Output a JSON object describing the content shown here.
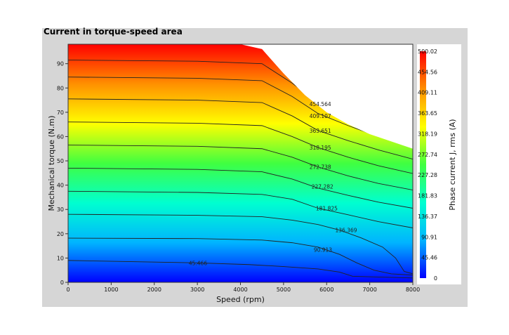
{
  "panel_title": "Current in torque-speed area",
  "chart_data": {
    "type": "heatmap",
    "title": "Current in torque-speed area",
    "xlabel": "Speed (rpm)",
    "ylabel": "Mechanical torque (N.m)",
    "colorbar_label": "Phase current J, rms (A)",
    "xlim": [
      0,
      8000
    ],
    "ylim": [
      0,
      98
    ],
    "x_ticks": [
      0,
      1000,
      2000,
      3000,
      4000,
      5000,
      6000,
      7000,
      8000
    ],
    "y_ticks": [
      0,
      10,
      20,
      30,
      40,
      50,
      60,
      70,
      80,
      90
    ],
    "colorbar_ticks": [
      "500.02",
      "454.56",
      "409.11",
      "363.65",
      "318.19",
      "272.74",
      "227.28",
      "181.83",
      "136.37",
      "90.91",
      "45.46",
      "0"
    ],
    "colorbar_range": [
      0,
      500.02
    ],
    "colormap": [
      "#0000ff",
      "#00b4ff",
      "#00ffd0",
      "#40ff40",
      "#ffff00",
      "#ff9000",
      "#ff0000"
    ],
    "envelope": [
      [
        0,
        98
      ],
      [
        4000,
        98
      ],
      [
        4500,
        96
      ],
      [
        5000,
        86
      ],
      [
        5500,
        77
      ],
      [
        6000,
        70
      ],
      [
        6500,
        65
      ],
      [
        7000,
        61
      ],
      [
        7500,
        58
      ],
      [
        8000,
        55
      ]
    ],
    "contours": [
      {
        "level": "45.466",
        "show_label": true,
        "label_at": [
          2800,
          8
        ],
        "points": [
          [
            0,
            9
          ],
          [
            3000,
            8
          ],
          [
            4200,
            7.3
          ],
          [
            5000,
            6.5
          ],
          [
            5800,
            5.5
          ],
          [
            6300,
            4.2
          ],
          [
            6600,
            2.5
          ],
          [
            8000,
            1.8
          ]
        ]
      },
      {
        "level": "90.913",
        "show_label": true,
        "label_at": [
          5700,
          13.5
        ],
        "points": [
          [
            0,
            18.2
          ],
          [
            3000,
            18
          ],
          [
            4500,
            17.4
          ],
          [
            5200,
            16.3
          ],
          [
            5800,
            14.5
          ],
          [
            6300,
            11.5
          ],
          [
            6700,
            8
          ],
          [
            7100,
            5
          ],
          [
            7500,
            3.5
          ],
          [
            8000,
            3
          ]
        ]
      },
      {
        "level": "136.369",
        "show_label": true,
        "label_at": [
          6200,
          21.5
        ],
        "points": [
          [
            0,
            28
          ],
          [
            3000,
            27.6
          ],
          [
            4500,
            27
          ],
          [
            5200,
            25.6
          ],
          [
            5800,
            23.8
          ],
          [
            6300,
            21.5
          ],
          [
            6800,
            18.3
          ],
          [
            7300,
            14.5
          ],
          [
            7600,
            10
          ],
          [
            7800,
            4.5
          ],
          [
            8000,
            3.5
          ]
        ]
      },
      {
        "level": "181.825",
        "show_label": true,
        "label_at": [
          5750,
          30.5
        ],
        "points": [
          [
            0,
            37.5
          ],
          [
            3000,
            37
          ],
          [
            4500,
            36.2
          ],
          [
            5200,
            34.2
          ],
          [
            5800,
            30.5
          ],
          [
            6500,
            27.8
          ],
          [
            7200,
            25
          ],
          [
            8000,
            22.4
          ]
        ]
      },
      {
        "level": "227.282",
        "show_label": true,
        "label_at": [
          5650,
          39.5
        ],
        "points": [
          [
            0,
            47
          ],
          [
            3000,
            46.5
          ],
          [
            4500,
            45.5
          ],
          [
            5200,
            42.5
          ],
          [
            5800,
            38.8
          ],
          [
            6500,
            35.8
          ],
          [
            7200,
            33
          ],
          [
            8000,
            30.5
          ]
        ]
      },
      {
        "level": "272.738",
        "show_label": true,
        "label_at": [
          5600,
          47.5
        ],
        "points": [
          [
            0,
            56.5
          ],
          [
            3000,
            56
          ],
          [
            4500,
            55
          ],
          [
            5200,
            51.5
          ],
          [
            5800,
            47.5
          ],
          [
            6500,
            43.8
          ],
          [
            7200,
            40.7
          ],
          [
            8000,
            38
          ]
        ]
      },
      {
        "level": "318.195",
        "show_label": true,
        "label_at": [
          5600,
          55.5
        ],
        "points": [
          [
            0,
            66
          ],
          [
            3000,
            65.5
          ],
          [
            4500,
            64.5
          ],
          [
            5200,
            60
          ],
          [
            5800,
            55.5
          ],
          [
            6500,
            51.5
          ],
          [
            7200,
            48
          ],
          [
            8000,
            44.8
          ]
        ]
      },
      {
        "level": "363.651",
        "show_label": true,
        "label_at": [
          5600,
          62.5
        ],
        "points": [
          [
            0,
            75.5
          ],
          [
            3000,
            75
          ],
          [
            4500,
            74
          ],
          [
            5200,
            68.5
          ],
          [
            5800,
            62.5
          ],
          [
            6500,
            58.3
          ],
          [
            7200,
            54.5
          ],
          [
            8000,
            50.7
          ]
        ]
      },
      {
        "level": "409.107",
        "show_label": true,
        "label_at": [
          5600,
          68.5
        ],
        "points": [
          [
            0,
            84.5
          ],
          [
            3000,
            84
          ],
          [
            4500,
            83
          ],
          [
            5200,
            76.5
          ],
          [
            5800,
            69.5
          ],
          [
            6500,
            64.5
          ],
          [
            7200,
            60
          ],
          [
            8000,
            55.5
          ]
        ]
      },
      {
        "level": "454.564",
        "show_label": true,
        "label_at": [
          5600,
          73.5
        ],
        "points": [
          [
            0,
            91.5
          ],
          [
            3000,
            91
          ],
          [
            4500,
            90
          ],
          [
            5200,
            82
          ],
          [
            5800,
            74
          ],
          [
            6500,
            67.5
          ],
          [
            7200,
            61.5
          ],
          [
            8000,
            56
          ]
        ]
      }
    ]
  }
}
